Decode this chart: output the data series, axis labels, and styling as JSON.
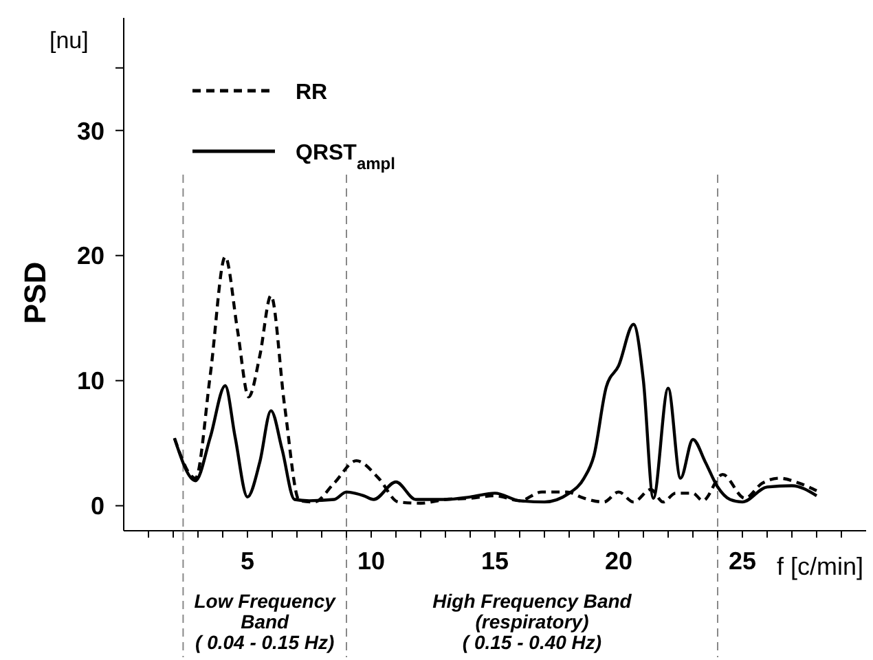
{
  "chart_data": {
    "type": "line",
    "ylabel": "PSD",
    "xlabel": "f [c/min]",
    "annotations": [
      "[nu]",
      "Low Frequency\nBand\n( 0.04 - 0.15 Hz)",
      "High Frequency Band\n(respiratory)\n( 0.15 - 0.40 Hz)"
    ],
    "xlim": [
      0,
      30
    ],
    "ylim": [
      -2,
      39
    ],
    "xticks": [
      {
        "value": 1,
        "label": null
      },
      {
        "value": 2,
        "label": null
      },
      {
        "value": 3,
        "label": null
      },
      {
        "value": 4,
        "label": null
      },
      5,
      {
        "value": 6,
        "label": null
      },
      {
        "value": 7,
        "label": null
      },
      {
        "value": 8,
        "label": null
      },
      {
        "value": 9,
        "label": null
      },
      10,
      {
        "value": 11,
        "label": null
      },
      {
        "value": 12,
        "label": null
      },
      {
        "value": 13,
        "label": null
      },
      {
        "value": 14,
        "label": null
      },
      15,
      {
        "value": 16,
        "label": null
      },
      {
        "value": 17,
        "label": null
      },
      {
        "value": 18,
        "label": null
      },
      {
        "value": 19,
        "label": null
      },
      20,
      {
        "value": 21,
        "label": null
      },
      {
        "value": 22,
        "label": null
      },
      {
        "value": 23,
        "label": null
      },
      {
        "value": 24,
        "label": null
      },
      25,
      {
        "value": 26,
        "label": null
      },
      {
        "value": 27,
        "label": null
      },
      {
        "value": 28,
        "label": null
      },
      {
        "value": 29,
        "label": null
      }
    ],
    "yticks": [
      0,
      10,
      20,
      30,
      {
        "value": 35,
        "label": null
      }
    ],
    "grid": false,
    "legend": "top left",
    "marker": "none",
    "ref_lines": [
      {
        "axis": "x",
        "value": 2.4,
        "color": "#888888",
        "line_style": "dashed"
      },
      {
        "axis": "x",
        "value": 9,
        "color": "#888888",
        "line_style": "dashed"
      },
      {
        "axis": "x",
        "value": 24,
        "color": "#888888",
        "line_style": "dashed"
      }
    ],
    "series": [
      {
        "name": "RR",
        "color": "#000000",
        "line_style": "dashed",
        "x": [
          2.05,
          2.9,
          3.5,
          4.1,
          4.6,
          5.05,
          5.5,
          5.95,
          6.5,
          7.1,
          7.7,
          8.5,
          9.4,
          10.3,
          11.1,
          12,
          13,
          14,
          15,
          16,
          16.9,
          17.9,
          18.6,
          19.4,
          20.0,
          20.6,
          21.3,
          21.8,
          22.3,
          23.0,
          23.4,
          24.2,
          25.1,
          25.8,
          26.5,
          27.3,
          28
        ],
        "values": [
          5.4,
          2.2,
          10.5,
          19.9,
          14,
          8.7,
          12,
          16.8,
          8,
          0.4,
          0.3,
          1.8,
          3.6,
          2.2,
          0.3,
          0.2,
          0.5,
          0.6,
          0.8,
          0.4,
          1.1,
          1.1,
          0.6,
          0.3,
          1.1,
          0.3,
          1.3,
          0.3,
          1.0,
          1.0,
          0.4,
          2.5,
          0.6,
          1.8,
          2.2,
          1.8,
          1.2
        ]
      },
      {
        "name": "QRST$_{ampl}$",
        "color": "#000000",
        "line_style": "solid",
        "x": [
          2.05,
          2.9,
          3.5,
          4.1,
          4.5,
          5.0,
          5.5,
          5.95,
          6.4,
          6.9,
          7.5,
          8.5,
          9.0,
          9.7,
          10.1,
          11.0,
          11.8,
          13,
          14,
          15,
          16,
          17,
          18,
          18.6,
          19.0,
          19.5,
          20.0,
          20.6,
          21.0,
          21.4,
          22.0,
          22.5,
          23.0,
          23.5,
          24.0,
          24.5,
          25.0,
          26,
          27,
          28
        ],
        "values": [
          5.4,
          2.0,
          5.5,
          9.6,
          5.5,
          0.7,
          3.5,
          7.6,
          4.5,
          0.5,
          0.4,
          0.5,
          1.1,
          0.8,
          0.5,
          1.9,
          0.5,
          0.5,
          0.7,
          1.0,
          0.4,
          0.3,
          1.0,
          2.2,
          4,
          9.5,
          11.2,
          14.5,
          10,
          0.6,
          9.4,
          2.2,
          5.3,
          3.5,
          1.5,
          0.5,
          0.3,
          1.5,
          1.6,
          0.8
        ]
      }
    ]
  }
}
